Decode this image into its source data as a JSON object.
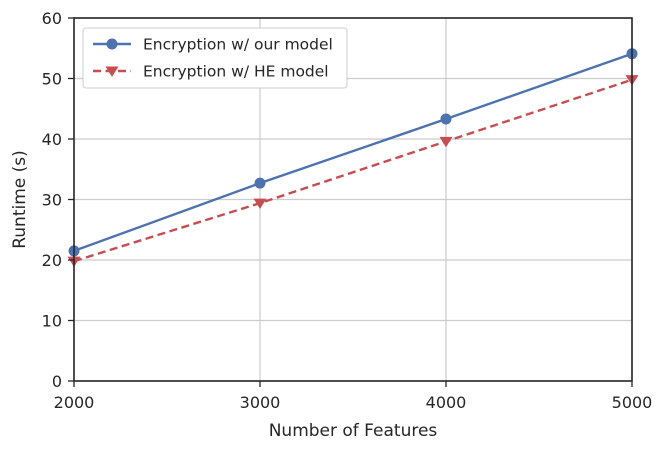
{
  "chart_data": {
    "type": "line",
    "title": "",
    "xlabel": "Number of Features",
    "ylabel": "Runtime (s)",
    "x": [
      2000,
      3000,
      4000,
      5000
    ],
    "xticks": [
      2000,
      3000,
      4000,
      5000
    ],
    "yticks": [
      0,
      10,
      20,
      30,
      40,
      50,
      60
    ],
    "xlim": [
      2000,
      5000
    ],
    "ylim": [
      0,
      60
    ],
    "grid": true,
    "legend_position": "top-left",
    "series": [
      {
        "name": "Encryption w/ our model",
        "values": [
          21.5,
          32.7,
          43.3,
          54.1
        ],
        "color": "#4c72b0",
        "marker": "circle",
        "line_style": "solid"
      },
      {
        "name": "Encryption w/ HE model",
        "values": [
          19.8,
          29.4,
          39.6,
          49.8
        ],
        "color": "#c44e52",
        "marker": "triangle-down",
        "line_style": "dashed"
      }
    ]
  }
}
